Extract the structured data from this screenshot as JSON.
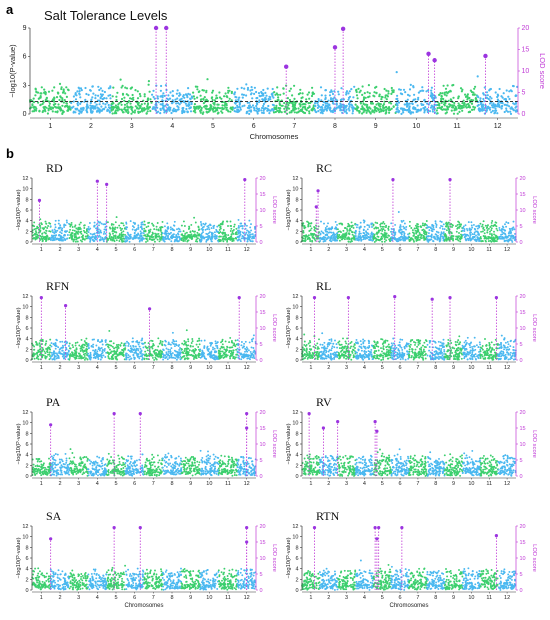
{
  "figure": {
    "label_a": "a",
    "label_b": "b"
  },
  "colors": {
    "green": "#3ccf6e",
    "blue": "#4ab8f0",
    "lod_magenta": "#c03bd6",
    "threshold": "#222222",
    "point_purple": "#9b34e0",
    "red": "#e02030"
  },
  "chart_data": [
    {
      "id": "main",
      "type": "scatter",
      "title": "Salt Tolerance Levels",
      "xlabel": "Chromosomes",
      "ylabel": "−log10(P-value)",
      "y2label": "LOD score",
      "categories": [
        "1",
        "2",
        "3",
        "4",
        "5",
        "6",
        "7",
        "8",
        "9",
        "10",
        "11",
        "12"
      ],
      "ylim": [
        0,
        9
      ],
      "yticks": [
        0,
        3,
        6,
        9
      ],
      "y2lim": [
        0,
        20
      ],
      "y2ticks": [
        0,
        5,
        10,
        15,
        20
      ],
      "threshold": 1.3,
      "peaks": [
        {
          "chr": 3.6,
          "lod": 20
        },
        {
          "chr": 3.85,
          "lod": 20
        },
        {
          "chr": 8.0,
          "lod": 15.5
        },
        {
          "chr": 8.2,
          "lod": 19.8
        },
        {
          "chr": 10.3,
          "lod": 14
        },
        {
          "chr": 10.45,
          "lod": 12.5
        },
        {
          "chr": 11.7,
          "lod": 13.5
        },
        {
          "chr": 6.8,
          "lod": 11
        }
      ]
    },
    {
      "id": "RD",
      "type": "scatter",
      "title": "RD",
      "xlabel": "",
      "ylabel": "−log10(P-value)",
      "y2label": "LOD score",
      "categories": [
        "1",
        "2",
        "3",
        "4",
        "5",
        "6",
        "7",
        "8",
        "9",
        "10",
        "11",
        "12"
      ],
      "ylim": [
        0,
        12
      ],
      "yticks": [
        0,
        2,
        4,
        6,
        8,
        10,
        12
      ],
      "y2lim": [
        0,
        20
      ],
      "y2ticks": [
        0,
        5,
        10,
        15,
        20
      ],
      "peaks": [
        {
          "chr": 4.0,
          "lod": 19
        },
        {
          "chr": 4.5,
          "lod": 18
        },
        {
          "chr": 11.9,
          "lod": 19.5
        },
        {
          "chr": 0.9,
          "lod": 13
        }
      ]
    },
    {
      "id": "RC",
      "type": "scatter",
      "title": "RC",
      "xlabel": "",
      "ylabel": "−log10(P-value)",
      "y2label": "LOD score",
      "categories": [
        "1",
        "2",
        "3",
        "4",
        "5",
        "6",
        "7",
        "8",
        "9",
        "10",
        "11",
        "12"
      ],
      "ylim": [
        0,
        12
      ],
      "yticks": [
        0,
        2,
        4,
        6,
        8,
        10,
        12
      ],
      "y2lim": [
        0,
        20
      ],
      "y2ticks": [
        0,
        5,
        10,
        15,
        20
      ],
      "peaks": [
        {
          "chr": 1.4,
          "lod": 16
        },
        {
          "chr": 5.6,
          "lod": 19.5
        },
        {
          "chr": 8.8,
          "lod": 19.5
        },
        {
          "chr": 1.3,
          "lod": 11
        }
      ]
    },
    {
      "id": "RFN",
      "type": "scatter",
      "title": "RFN",
      "xlabel": "",
      "ylabel": "−log10(P-value)",
      "y2label": "LOD score",
      "categories": [
        "1",
        "2",
        "3",
        "4",
        "5",
        "6",
        "7",
        "8",
        "9",
        "10",
        "11",
        "12"
      ],
      "ylim": [
        0,
        12
      ],
      "yticks": [
        0,
        2,
        4,
        6,
        8,
        10,
        12
      ],
      "y2lim": [
        0,
        20
      ],
      "y2ticks": [
        0,
        5,
        10,
        15,
        20
      ],
      "peaks": [
        {
          "chr": 1.0,
          "lod": 19.5
        },
        {
          "chr": 2.3,
          "lod": 17
        },
        {
          "chr": 6.8,
          "lod": 16
        },
        {
          "chr": 11.6,
          "lod": 19.5
        }
      ]
    },
    {
      "id": "RL",
      "type": "scatter",
      "title": "RL",
      "xlabel": "",
      "ylabel": "−log10(P-value)",
      "y2label": "LOD score",
      "categories": [
        "1",
        "2",
        "3",
        "4",
        "5",
        "6",
        "7",
        "8",
        "9",
        "10",
        "11",
        "12"
      ],
      "ylim": [
        0,
        12
      ],
      "yticks": [
        0,
        2,
        4,
        6,
        8,
        10,
        12
      ],
      "y2lim": [
        0,
        20
      ],
      "y2ticks": [
        0,
        5,
        10,
        15,
        20
      ],
      "peaks": [
        {
          "chr": 1.2,
          "lod": 19.5
        },
        {
          "chr": 3.1,
          "lod": 19.5
        },
        {
          "chr": 5.7,
          "lod": 19.8
        },
        {
          "chr": 7.8,
          "lod": 19
        },
        {
          "chr": 8.8,
          "lod": 19.5
        },
        {
          "chr": 11.4,
          "lod": 19.5
        }
      ]
    },
    {
      "id": "PA",
      "type": "scatter",
      "title": "PA",
      "xlabel": "",
      "ylabel": "−log10(P-value)",
      "y2label": "LOD score",
      "categories": [
        "1",
        "2",
        "3",
        "4",
        "5",
        "6",
        "7",
        "8",
        "9",
        "10",
        "11",
        "12"
      ],
      "ylim": [
        0,
        12
      ],
      "yticks": [
        0,
        2,
        4,
        6,
        8,
        10,
        12
      ],
      "y2lim": [
        0,
        20
      ],
      "y2ticks": [
        0,
        5,
        10,
        15,
        20
      ],
      "peaks": [
        {
          "chr": 1.5,
          "lod": 16
        },
        {
          "chr": 4.9,
          "lod": 19.5
        },
        {
          "chr": 6.3,
          "lod": 19.5
        },
        {
          "chr": 12.0,
          "lod": 19.5
        },
        {
          "chr": 12.0,
          "lod": 15
        }
      ]
    },
    {
      "id": "RV",
      "type": "scatter",
      "title": "RV",
      "xlabel": "",
      "ylabel": "−log10(P-value)",
      "y2label": "LOD score",
      "categories": [
        "1",
        "2",
        "3",
        "4",
        "5",
        "6",
        "7",
        "8",
        "9",
        "10",
        "11",
        "12"
      ],
      "ylim": [
        0,
        12
      ],
      "yticks": [
        0,
        2,
        4,
        6,
        8,
        10,
        12
      ],
      "y2lim": [
        0,
        20
      ],
      "y2ticks": [
        0,
        5,
        10,
        15,
        20
      ],
      "peaks": [
        {
          "chr": 0.9,
          "lod": 19.5
        },
        {
          "chr": 1.7,
          "lod": 15
        },
        {
          "chr": 2.5,
          "lod": 17
        },
        {
          "chr": 4.6,
          "lod": 17
        },
        {
          "chr": 4.7,
          "lod": 14
        }
      ]
    },
    {
      "id": "SA",
      "type": "scatter",
      "title": "SA",
      "xlabel": "Chromosomes",
      "ylabel": "−log10(P-value)",
      "y2label": "LOD score",
      "categories": [
        "1",
        "2",
        "3",
        "4",
        "5",
        "6",
        "7",
        "8",
        "9",
        "10",
        "11",
        "12"
      ],
      "ylim": [
        0,
        12
      ],
      "yticks": [
        0,
        2,
        4,
        6,
        8,
        10,
        12
      ],
      "y2lim": [
        0,
        20
      ],
      "y2ticks": [
        0,
        5,
        10,
        15,
        20
      ],
      "peaks": [
        {
          "chr": 1.5,
          "lod": 16
        },
        {
          "chr": 4.9,
          "lod": 19.5
        },
        {
          "chr": 6.3,
          "lod": 19.5
        },
        {
          "chr": 12.0,
          "lod": 19.5
        },
        {
          "chr": 12.0,
          "lod": 15
        }
      ]
    },
    {
      "id": "RTN",
      "type": "scatter",
      "title": "RTN",
      "xlabel": "Chromosomes",
      "ylabel": "−log10(P-value)",
      "y2label": "LOD score",
      "categories": [
        "1",
        "2",
        "3",
        "4",
        "5",
        "6",
        "7",
        "8",
        "9",
        "10",
        "11",
        "12"
      ],
      "ylim": [
        0,
        12
      ],
      "yticks": [
        0,
        2,
        4,
        6,
        8,
        10,
        12
      ],
      "y2lim": [
        0,
        20
      ],
      "y2ticks": [
        0,
        5,
        10,
        15,
        20
      ],
      "peaks": [
        {
          "chr": 1.2,
          "lod": 19.5
        },
        {
          "chr": 4.6,
          "lod": 19.5
        },
        {
          "chr": 4.8,
          "lod": 19.5
        },
        {
          "chr": 4.7,
          "lod": 16
        },
        {
          "chr": 6.1,
          "lod": 19.5
        },
        {
          "chr": 11.4,
          "lod": 17
        }
      ]
    }
  ]
}
